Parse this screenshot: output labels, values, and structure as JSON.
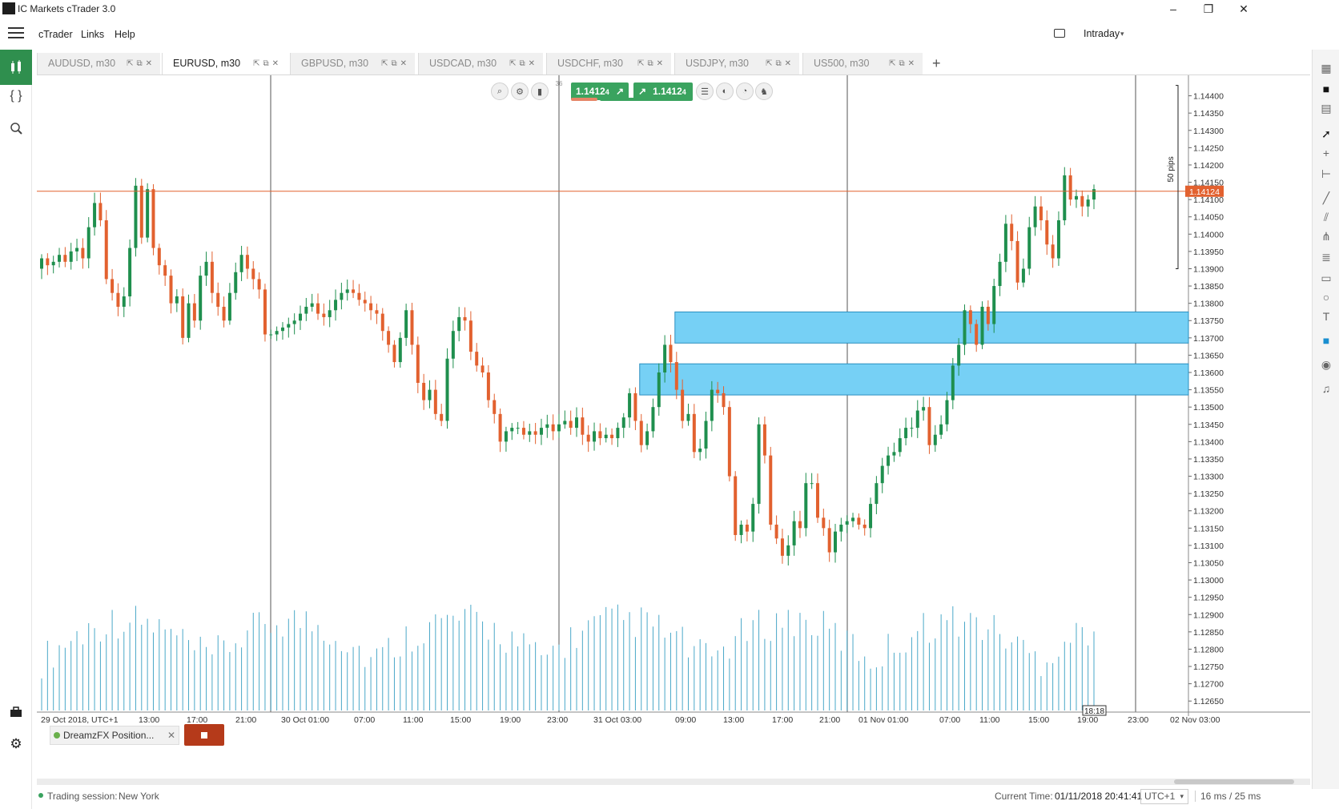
{
  "window": {
    "title": "IC Markets cTrader 3.0",
    "minimize": "–",
    "restore": "❐",
    "close": "✕"
  },
  "menu": [
    "cTrader",
    "Links",
    "Help"
  ],
  "header_right": {
    "workspace": "Intraday",
    "workspace_arrow": "▾"
  },
  "tabs": [
    {
      "label": "AUDUSD, m30",
      "active": false
    },
    {
      "label": "EURUSD, m30",
      "active": true
    },
    {
      "label": "GBPUSD, m30",
      "active": false
    },
    {
      "label": "USDCAD, m30",
      "active": false
    },
    {
      "label": "USDCHF, m30",
      "active": false
    },
    {
      "label": "USDJPY, m30",
      "active": false
    },
    {
      "label": "US500, m30",
      "active": false
    }
  ],
  "tab_icons": "⇱⧉✕",
  "add_tab": "+",
  "quick_trade": {
    "sell_price": "1.1412",
    "sell_price_sup": "4",
    "buy_price": "1.1412",
    "buy_price_sup": "4",
    "lot_label": "36"
  },
  "bot_panel": {
    "name": "DreamzFX Position...",
    "close": "✕"
  },
  "status": {
    "session_label": "Trading session:",
    "session_value": "New York",
    "time_label": "Current Time:",
    "time_value": "01/11/2018 20:41:41",
    "timezone": "UTC+1",
    "latency": "16 ms / 25 ms"
  },
  "colors": {
    "bull": "#1f8f4e",
    "bear": "#e2612f",
    "volume": "#4aa8c8",
    "zone": "#76d0f5",
    "current_price": "#e2612f"
  },
  "chart_data": {
    "type": "candlestick",
    "symbol": "EURUSD",
    "timeframe": "m30",
    "current_price": 1.14124,
    "current_price_label": "1.14124",
    "measure_label": "50 pips",
    "cursor_time": "18:18",
    "ylim": [
      1.12625,
      1.1445
    ],
    "y_ticks": [
      1.144,
      1.1435,
      1.143,
      1.1425,
      1.142,
      1.1415,
      1.141,
      1.1405,
      1.14,
      1.1395,
      1.139,
      1.1385,
      1.138,
      1.1375,
      1.137,
      1.1365,
      1.136,
      1.1355,
      1.135,
      1.1345,
      1.134,
      1.1335,
      1.133,
      1.1325,
      1.132,
      1.1315,
      1.131,
      1.1305,
      1.13,
      1.1295,
      1.129,
      1.1285,
      1.128,
      1.1275,
      1.127,
      1.1265
    ],
    "y_tick_labels": [
      "1.14400",
      "1.14350",
      "1.14300",
      "1.14250",
      "1.14200",
      "1.14150",
      "1.14100",
      "1.14050",
      "1.14000",
      "1.13950",
      "1.13900",
      "1.13850",
      "1.13800",
      "1.13750",
      "1.13700",
      "1.13650",
      "1.13600",
      "1.13550",
      "1.13500",
      "1.13450",
      "1.13400",
      "1.13350",
      "1.13300",
      "1.13250",
      "1.13200",
      "1.13150",
      "1.13100",
      "1.13050",
      "1.13000",
      "1.12950",
      "1.12900",
      "1.12850",
      "1.12800",
      "1.12750",
      "1.12700",
      "1.12650"
    ],
    "x_tick_labels": [
      "29 Oct 2018, UTC+1",
      "13:00",
      "17:00",
      "21:00",
      "30 Oct 01:00",
      "07:00",
      "11:00",
      "15:00",
      "19:00",
      "23:00",
      "31 Oct 03:00",
      "09:00",
      "13:00",
      "17:00",
      "21:00",
      "01 Nov 01:00",
      "07:00",
      "11:00",
      "15:00",
      "19:00",
      "23:00",
      "02 Nov 03:00"
    ],
    "zones": [
      {
        "from_bar": 108,
        "top": 1.13775,
        "bottom": 1.13685
      },
      {
        "from_bar": 102,
        "top": 1.13625,
        "bottom": 1.13535
      }
    ],
    "closes": [
      1.1393,
      1.1391,
      1.1392,
      1.1394,
      1.1392,
      1.1395,
      1.1396,
      1.1393,
      1.1402,
      1.1409,
      1.1404,
      1.1387,
      1.1383,
      1.1379,
      1.1382,
      1.1396,
      1.1414,
      1.1399,
      1.1413,
      1.1396,
      1.1391,
      1.1388,
      1.138,
      1.1382,
      1.137,
      1.138,
      1.1375,
      1.1388,
      1.1392,
      1.1383,
      1.1379,
      1.1375,
      1.1383,
      1.1389,
      1.1394,
      1.139,
      1.1387,
      1.1384,
      1.1371,
      1.1371,
      1.1372,
      1.1373,
      1.1374,
      1.1375,
      1.1377,
      1.1379,
      1.138,
      1.1377,
      1.1376,
      1.1378,
      1.1381,
      1.1383,
      1.1384,
      1.1383,
      1.1381,
      1.138,
      1.1378,
      1.1377,
      1.1372,
      1.1368,
      1.1363,
      1.137,
      1.1378,
      1.1368,
      1.1357,
      1.1352,
      1.1355,
      1.1348,
      1.1346,
      1.1364,
      1.1372,
      1.1376,
      1.1375,
      1.1366,
      1.1362,
      1.136,
      1.1352,
      1.1348,
      1.134,
      1.1343,
      1.1344,
      1.1344,
      1.1342,
      1.1343,
      1.1342,
      1.1344,
      1.1345,
      1.1343,
      1.1345,
      1.1346,
      1.1344,
      1.1347,
      1.1342,
      1.134,
      1.1343,
      1.1341,
      1.1342,
      1.1341,
      1.1344,
      1.1347,
      1.1354,
      1.1346,
      1.1339,
      1.1343,
      1.135,
      1.136,
      1.1368,
      1.1363,
      1.1355,
      1.1346,
      1.1348,
      1.1337,
      1.1338,
      1.1346,
      1.1355,
      1.1354,
      1.135,
      1.133,
      1.1313,
      1.1316,
      1.1314,
      1.1322,
      1.1345,
      1.1336,
      1.1316,
      1.1312,
      1.1307,
      1.131,
      1.1317,
      1.1315,
      1.1328,
      1.1328,
      1.1318,
      1.1315,
      1.1308,
      1.1314,
      1.1316,
      1.1317,
      1.1318,
      1.1316,
      1.1315,
      1.1322,
      1.1328,
      1.1333,
      1.1336,
      1.1337,
      1.1341,
      1.1344,
      1.1344,
      1.1349,
      1.135,
      1.1339,
      1.1342,
      1.1345,
      1.1352,
      1.1362,
      1.1368,
      1.1378,
      1.1374,
      1.1368,
      1.1379,
      1.1374,
      1.1385,
      1.1392,
      1.1403,
      1.1398,
      1.1386,
      1.139,
      1.1402,
      1.1408,
      1.1404,
      1.1397,
      1.1393,
      1.1404,
      1.1417,
      1.141,
      1.1411,
      1.1408,
      1.141,
      1.1413
    ]
  }
}
